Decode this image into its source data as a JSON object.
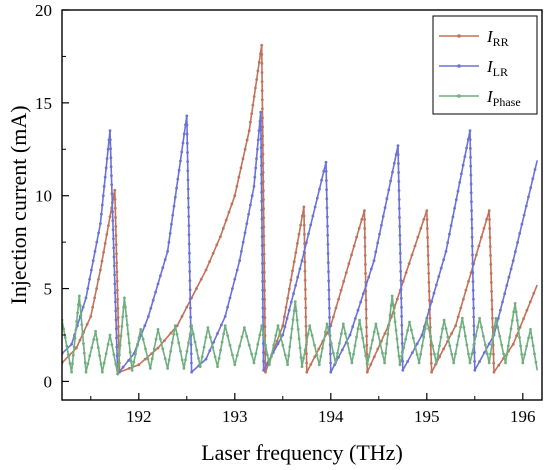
{
  "chart_data": {
    "type": "line",
    "xlabel": "Laser frequency (THz)",
    "ylabel": "Injection current (mA)",
    "xlim": [
      191.2,
      196.2
    ],
    "ylim": [
      -1,
      20
    ],
    "xticks": [
      192,
      193,
      194,
      195,
      196
    ],
    "yticks": [
      0,
      5,
      10,
      15,
      20
    ],
    "grid": false,
    "legend_position": "top-right",
    "series": [
      {
        "name": "I_RR",
        "label_main": "I",
        "label_sub": "RR",
        "color": "#c0735a",
        "points": [
          [
            191.2,
            1.0
          ],
          [
            191.35,
            1.8
          ],
          [
            191.5,
            3.5
          ],
          [
            191.6,
            6.0
          ],
          [
            191.75,
            10.3
          ],
          [
            191.8,
            0.5
          ],
          [
            192.0,
            0.9
          ],
          [
            192.2,
            1.8
          ],
          [
            192.4,
            3.0
          ],
          [
            192.55,
            4.5
          ],
          [
            192.7,
            6.0
          ],
          [
            192.85,
            7.8
          ],
          [
            193.0,
            10.0
          ],
          [
            193.15,
            13.5
          ],
          [
            193.28,
            18.1
          ],
          [
            193.32,
            0.5
          ],
          [
            193.5,
            3.0
          ],
          [
            193.72,
            9.4
          ],
          [
            193.75,
            0.5
          ],
          [
            194.0,
            3.0
          ],
          [
            194.35,
            9.2
          ],
          [
            194.38,
            0.5
          ],
          [
            194.6,
            3.0
          ],
          [
            195.0,
            9.2
          ],
          [
            195.05,
            0.5
          ],
          [
            195.3,
            3.0
          ],
          [
            195.65,
            9.2
          ],
          [
            195.7,
            0.5
          ],
          [
            195.9,
            2.0
          ],
          [
            196.15,
            5.2
          ]
        ]
      },
      {
        "name": "I_LR",
        "label_main": "I",
        "label_sub": "LR",
        "color": "#6b72d6",
        "points": [
          [
            191.2,
            1.5
          ],
          [
            191.3,
            2.0
          ],
          [
            191.45,
            4.5
          ],
          [
            191.6,
            8.5
          ],
          [
            191.7,
            13.5
          ],
          [
            191.78,
            0.4
          ],
          [
            191.95,
            1.5
          ],
          [
            192.1,
            3.5
          ],
          [
            192.3,
            7.0
          ],
          [
            192.5,
            14.3
          ],
          [
            192.55,
            0.5
          ],
          [
            192.7,
            1.2
          ],
          [
            192.9,
            3.5
          ],
          [
            193.05,
            6.5
          ],
          [
            193.2,
            10.5
          ],
          [
            193.27,
            14.5
          ],
          [
            193.3,
            0.6
          ],
          [
            193.5,
            2.5
          ],
          [
            193.7,
            6.5
          ],
          [
            193.95,
            11.8
          ],
          [
            194.0,
            0.5
          ],
          [
            194.2,
            2.5
          ],
          [
            194.45,
            6.5
          ],
          [
            194.7,
            12.7
          ],
          [
            194.75,
            0.6
          ],
          [
            194.95,
            2.5
          ],
          [
            195.2,
            7.0
          ],
          [
            195.45,
            13.5
          ],
          [
            195.5,
            0.6
          ],
          [
            195.7,
            2.5
          ],
          [
            195.9,
            6.5
          ],
          [
            196.15,
            11.9
          ]
        ]
      },
      {
        "name": "I_Phase",
        "label_main": "I",
        "label_sub": "Phase",
        "color": "#6fae7f",
        "points": [
          [
            191.2,
            3.3
          ],
          [
            191.3,
            0.5
          ],
          [
            191.38,
            4.6
          ],
          [
            191.45,
            0.5
          ],
          [
            191.55,
            2.7
          ],
          [
            191.62,
            0.5
          ],
          [
            191.7,
            2.5
          ],
          [
            191.78,
            0.4
          ],
          [
            191.85,
            4.5
          ],
          [
            191.93,
            0.6
          ],
          [
            192.02,
            2.8
          ],
          [
            192.12,
            0.7
          ],
          [
            192.2,
            2.8
          ],
          [
            192.3,
            0.7
          ],
          [
            192.38,
            3.0
          ],
          [
            192.47,
            0.7
          ],
          [
            192.55,
            3.0
          ],
          [
            192.64,
            0.8
          ],
          [
            192.72,
            2.9
          ],
          [
            192.82,
            0.8
          ],
          [
            192.9,
            3.0
          ],
          [
            193.0,
            0.9
          ],
          [
            193.1,
            2.9
          ],
          [
            193.2,
            1.0
          ],
          [
            193.28,
            3.0
          ],
          [
            193.36,
            0.9
          ],
          [
            193.45,
            3.0
          ],
          [
            193.55,
            0.9
          ],
          [
            193.63,
            4.3
          ],
          [
            193.7,
            0.8
          ],
          [
            193.78,
            3.0
          ],
          [
            193.88,
            0.9
          ],
          [
            193.96,
            3.1
          ],
          [
            194.05,
            1.0
          ],
          [
            194.13,
            3.1
          ],
          [
            194.22,
            1.0
          ],
          [
            194.3,
            3.3
          ],
          [
            194.38,
            0.9
          ],
          [
            194.47,
            3.1
          ],
          [
            194.56,
            1.0
          ],
          [
            194.64,
            4.6
          ],
          [
            194.72,
            0.9
          ],
          [
            194.82,
            3.2
          ],
          [
            194.92,
            1.0
          ],
          [
            195.0,
            3.3
          ],
          [
            195.1,
            1.0
          ],
          [
            195.18,
            3.3
          ],
          [
            195.28,
            1.0
          ],
          [
            195.37,
            3.4
          ],
          [
            195.45,
            1.0
          ],
          [
            195.55,
            3.4
          ],
          [
            195.65,
            1.0
          ],
          [
            195.72,
            3.4
          ],
          [
            195.82,
            1.0
          ],
          [
            195.92,
            4.2
          ],
          [
            196.0,
            1.0
          ],
          [
            196.08,
            2.8
          ],
          [
            196.15,
            0.6
          ]
        ]
      }
    ]
  }
}
